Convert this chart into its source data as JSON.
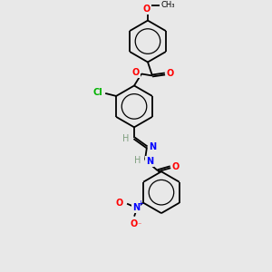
{
  "bg_color": "#e8e8e8",
  "bond_color": "#000000",
  "atom_colors": {
    "O": "#ff0000",
    "N": "#0000ff",
    "Cl": "#00b300",
    "H": "#7f9f7f",
    "C": "#000000"
  },
  "figsize": [
    3.0,
    3.0
  ],
  "dpi": 100,
  "lw": 1.3
}
